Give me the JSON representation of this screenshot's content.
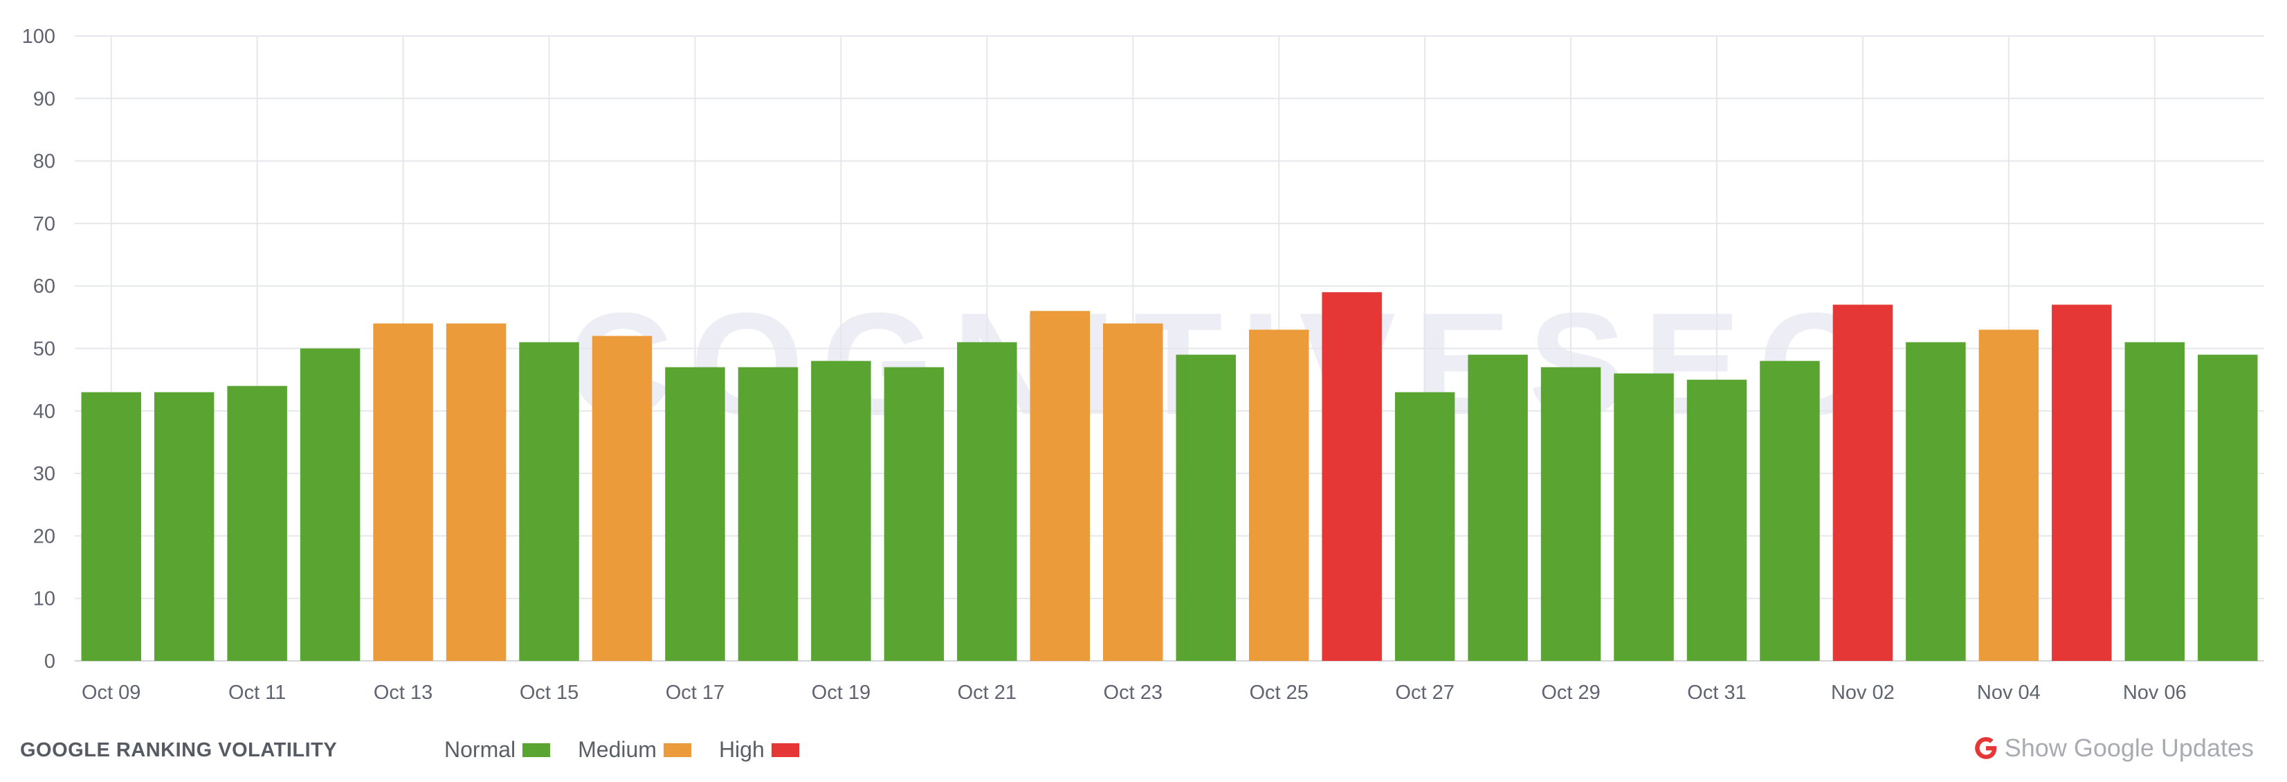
{
  "chart_data": {
    "type": "bar",
    "title": "GOOGLE RANKING VOLATILITY",
    "ylim": [
      0,
      100
    ],
    "y_ticks": [
      0,
      10,
      20,
      30,
      40,
      50,
      60,
      70,
      80,
      90,
      100
    ],
    "grid": true,
    "categories": [
      "Oct 09",
      "Oct 10",
      "Oct 11",
      "Oct 12",
      "Oct 13",
      "Oct 14",
      "Oct 15",
      "Oct 16",
      "Oct 17",
      "Oct 18",
      "Oct 19",
      "Oct 20",
      "Oct 21",
      "Oct 22",
      "Oct 23",
      "Oct 24",
      "Oct 25",
      "Oct 26",
      "Oct 27",
      "Oct 28",
      "Oct 29",
      "Oct 30",
      "Oct 31",
      "Nov 01",
      "Nov 02",
      "Nov 03",
      "Nov 04",
      "Nov 05",
      "Nov 06",
      "Nov 07"
    ],
    "x_tick_labels": [
      "Oct 09",
      "",
      "Oct 11",
      "",
      "Oct 13",
      "",
      "Oct 15",
      "",
      "Oct 17",
      "",
      "Oct 19",
      "",
      "Oct 21",
      "",
      "Oct 23",
      "",
      "Oct 25",
      "",
      "Oct 27",
      "",
      "Oct 29",
      "",
      "Oct 31",
      "",
      "Nov 02",
      "",
      "Nov 04",
      "",
      "Nov 06",
      ""
    ],
    "values": [
      43,
      43,
      44,
      50,
      54,
      54,
      51,
      52,
      47,
      47,
      48,
      47,
      51,
      56,
      54,
      49,
      53,
      59,
      43,
      49,
      47,
      46,
      45,
      48,
      57,
      51,
      53,
      57,
      51,
      49
    ],
    "levels": [
      "normal",
      "normal",
      "normal",
      "normal",
      "medium",
      "medium",
      "normal",
      "medium",
      "normal",
      "normal",
      "normal",
      "normal",
      "normal",
      "medium",
      "medium",
      "normal",
      "medium",
      "high",
      "normal",
      "normal",
      "normal",
      "normal",
      "normal",
      "normal",
      "high",
      "normal",
      "medium",
      "high",
      "normal",
      "normal"
    ],
    "legend": [
      {
        "key": "normal",
        "label": "Normal",
        "color": "#5aa532"
      },
      {
        "key": "medium",
        "label": "Medium",
        "color": "#ec9b3b"
      },
      {
        "key": "high",
        "label": "High",
        "color": "#e53735"
      }
    ],
    "legend_position": "bottom-left"
  },
  "watermark": "COGNITIVESEO",
  "footer": {
    "updates_label": "Show Google Updates",
    "updates_icon": "google-g-icon",
    "updates_icon_color": "#e53735"
  },
  "colors": {
    "grid": "#e6e7eb",
    "tick_text": "#5f6470"
  }
}
